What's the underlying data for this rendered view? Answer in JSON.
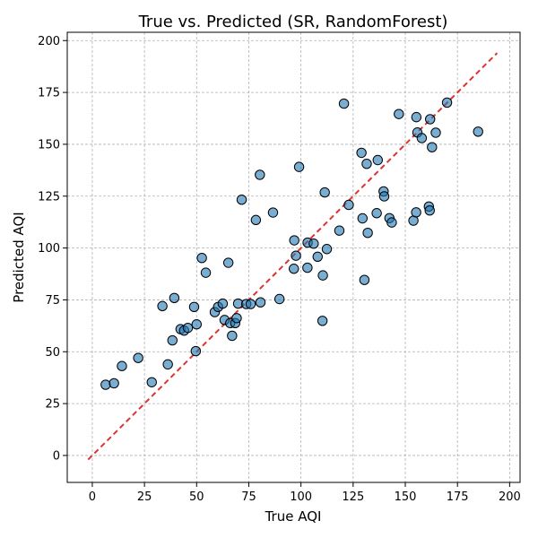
{
  "chart_data": {
    "type": "scatter",
    "title": "True vs. Predicted (SR, RandomForest)",
    "xlabel": "True AQI",
    "ylabel": "Predicted AQI",
    "xlim": [
      -12,
      205
    ],
    "ylim": [
      -13,
      204
    ],
    "xticks": [
      0,
      25,
      50,
      75,
      100,
      125,
      150,
      175,
      200
    ],
    "yticks": [
      0,
      25,
      50,
      75,
      100,
      125,
      150,
      175,
      200
    ],
    "grid": true,
    "point_color": "#1f77b4",
    "reference_line": {
      "style": "dashed",
      "color": "#e03131",
      "from": [
        -2,
        -2
      ],
      "to": [
        194,
        194
      ]
    },
    "points": [
      [
        6.4,
        34.1
      ],
      [
        10.4,
        34.8
      ],
      [
        14.2,
        43.1
      ],
      [
        22.0,
        47.0
      ],
      [
        28.5,
        35.3
      ],
      [
        33.6,
        72.0
      ],
      [
        36.2,
        43.9
      ],
      [
        38.4,
        55.5
      ],
      [
        39.3,
        75.9
      ],
      [
        42.3,
        60.9
      ],
      [
        44.0,
        60.2
      ],
      [
        45.8,
        61.5
      ],
      [
        48.8,
        71.6
      ],
      [
        49.6,
        50.3
      ],
      [
        50.0,
        63.2
      ],
      [
        52.5,
        95.2
      ],
      [
        54.4,
        88.1
      ],
      [
        58.7,
        69.1
      ],
      [
        60.3,
        71.6
      ],
      [
        62.5,
        73.2
      ],
      [
        63.4,
        65.3
      ],
      [
        65.2,
        92.9
      ],
      [
        66.1,
        63.8
      ],
      [
        67.0,
        57.7
      ],
      [
        68.5,
        63.8
      ],
      [
        69.2,
        66.2
      ],
      [
        69.9,
        73.2
      ],
      [
        71.6,
        123.3
      ],
      [
        73.8,
        73.0
      ],
      [
        75.9,
        73.0
      ],
      [
        78.4,
        113.5
      ],
      [
        80.3,
        135.3
      ],
      [
        80.6,
        73.8
      ],
      [
        86.6,
        117.1
      ],
      [
        89.7,
        75.4
      ],
      [
        96.8,
        103.7
      ],
      [
        96.6,
        90.0
      ],
      [
        97.6,
        96.3
      ],
      [
        99.1,
        139.1
      ],
      [
        103.2,
        102.6
      ],
      [
        103.1,
        90.5
      ],
      [
        106.1,
        102.1
      ],
      [
        108.0,
        95.8
      ],
      [
        110.3,
        64.9
      ],
      [
        110.5,
        86.8
      ],
      [
        111.4,
        126.8
      ],
      [
        112.4,
        99.5
      ],
      [
        118.4,
        108.4
      ],
      [
        120.6,
        169.6
      ],
      [
        122.9,
        120.8
      ],
      [
        129.0,
        145.9
      ],
      [
        129.5,
        114.3
      ],
      [
        130.4,
        84.6
      ],
      [
        131.5,
        140.6
      ],
      [
        132.0,
        107.3
      ],
      [
        136.3,
        116.8
      ],
      [
        136.8,
        142.4
      ],
      [
        139.6,
        127.3
      ],
      [
        139.9,
        124.9
      ],
      [
        142.4,
        114.4
      ],
      [
        143.5,
        112.3
      ],
      [
        146.9,
        164.6
      ],
      [
        153.9,
        113.2
      ],
      [
        155.2,
        117.2
      ],
      [
        155.3,
        163.1
      ],
      [
        155.8,
        155.7
      ],
      [
        157.9,
        153.0
      ],
      [
        161.3,
        120.0
      ],
      [
        161.7,
        118.1
      ],
      [
        161.9,
        162.1
      ],
      [
        162.8,
        148.6
      ],
      [
        164.6,
        155.6
      ],
      [
        170.0,
        170.1
      ],
      [
        184.9,
        156.1
      ]
    ]
  }
}
